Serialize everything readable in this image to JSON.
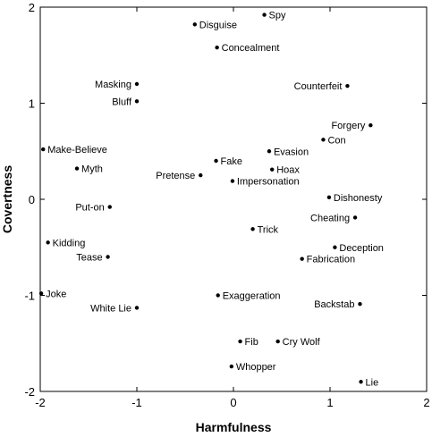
{
  "chart_data": {
    "type": "scatter",
    "title": "",
    "xlabel": "Harmfulness",
    "ylabel": "Covertness",
    "xlim": [
      -2,
      2
    ],
    "ylim": [
      -2,
      2
    ],
    "xticks": [
      "-2",
      "-1",
      "0",
      "1",
      "2"
    ],
    "yticks": [
      "2",
      "1",
      "0",
      "-1",
      "-2"
    ],
    "grid": false,
    "points": [
      {
        "label": "Spy",
        "x": 0.32,
        "y": 1.92,
        "side": "right"
      },
      {
        "label": "Disguise",
        "x": -0.4,
        "y": 1.82,
        "side": "right"
      },
      {
        "label": "Concealment",
        "x": -0.17,
        "y": 1.58,
        "side": "right"
      },
      {
        "label": "Masking",
        "x": -1.0,
        "y": 1.2,
        "side": "left"
      },
      {
        "label": "Counterfeit",
        "x": 1.18,
        "y": 1.18,
        "side": "left"
      },
      {
        "label": "Bluff",
        "x": -1.0,
        "y": 1.02,
        "side": "left"
      },
      {
        "label": "Forgery",
        "x": 1.42,
        "y": 0.77,
        "side": "left"
      },
      {
        "label": "Con",
        "x": 0.93,
        "y": 0.62,
        "side": "right"
      },
      {
        "label": "Make-Believe",
        "x": -1.97,
        "y": 0.52,
        "side": "right"
      },
      {
        "label": "Evasion",
        "x": 0.37,
        "y": 0.5,
        "side": "right"
      },
      {
        "label": "Fake",
        "x": -0.18,
        "y": 0.4,
        "side": "right"
      },
      {
        "label": "Myth",
        "x": -1.62,
        "y": 0.32,
        "side": "right"
      },
      {
        "label": "Hoax",
        "x": 0.4,
        "y": 0.31,
        "side": "right"
      },
      {
        "label": "Pretense",
        "x": -0.34,
        "y": 0.25,
        "side": "left"
      },
      {
        "label": "Impersonation",
        "x": -0.01,
        "y": 0.19,
        "side": "right"
      },
      {
        "label": "Dishonesty",
        "x": 0.99,
        "y": 0.02,
        "side": "right"
      },
      {
        "label": "Put-on",
        "x": -1.28,
        "y": -0.08,
        "side": "left"
      },
      {
        "label": "Cheating",
        "x": 1.26,
        "y": -0.19,
        "side": "left"
      },
      {
        "label": "Trick",
        "x": 0.2,
        "y": -0.31,
        "side": "right"
      },
      {
        "label": "Kidding",
        "x": -1.92,
        "y": -0.45,
        "side": "right"
      },
      {
        "label": "Deception",
        "x": 1.05,
        "y": -0.5,
        "side": "right"
      },
      {
        "label": "Tease",
        "x": -1.3,
        "y": -0.6,
        "side": "left"
      },
      {
        "label": "Fabrication",
        "x": 0.71,
        "y": -0.62,
        "side": "right"
      },
      {
        "label": "Joke",
        "x": -1.99,
        "y": -0.98,
        "side": "right"
      },
      {
        "label": "Exaggeration",
        "x": -0.16,
        "y": -1.0,
        "side": "right"
      },
      {
        "label": "Backstab",
        "x": 1.31,
        "y": -1.09,
        "side": "left"
      },
      {
        "label": "White Lie",
        "x": -1.0,
        "y": -1.13,
        "side": "left"
      },
      {
        "label": "Fib",
        "x": 0.07,
        "y": -1.48,
        "side": "right"
      },
      {
        "label": "Cry Wolf",
        "x": 0.46,
        "y": -1.48,
        "side": "right"
      },
      {
        "label": "Whopper",
        "x": -0.02,
        "y": -1.74,
        "side": "right"
      },
      {
        "label": "Lie",
        "x": 1.32,
        "y": -1.9,
        "side": "right"
      }
    ]
  }
}
